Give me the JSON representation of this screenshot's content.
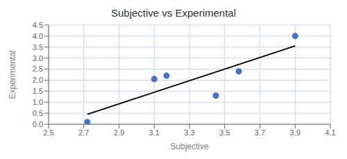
{
  "chart_data": {
    "type": "scatter",
    "title": "Subjective vs Experimental",
    "xlabel": "Subjective",
    "ylabel": "Experimental",
    "series": [
      {
        "type": "scatter",
        "color": "#4472c4",
        "x": [
          2.72,
          3.1,
          3.17,
          3.45,
          3.58,
          3.9
        ],
        "values": [
          0.1,
          2.05,
          2.2,
          1.3,
          2.4,
          4.0
        ]
      },
      {
        "type": "line",
        "color": "#000000",
        "x": [
          2.72,
          3.9
        ],
        "values": [
          0.45,
          3.55
        ]
      }
    ],
    "xlim": [
      2.5,
      4.1
    ],
    "ylim": [
      0,
      4.5
    ],
    "xticks": [
      2.5,
      2.7,
      2.9,
      3.1,
      3.3,
      3.5,
      3.7,
      3.9,
      4.1
    ],
    "yticks": [
      {
        "value": 0,
        "label": "0.0"
      },
      0.5,
      {
        "value": 1.0,
        "label": "1.0"
      },
      1.5,
      {
        "value": 2.0,
        "label": "2.0"
      },
      2.5,
      {
        "value": 3.0,
        "label": "3.0"
      },
      3.5,
      {
        "value": 4.0,
        "label": "4.0"
      },
      4.5
    ],
    "grid": true
  }
}
